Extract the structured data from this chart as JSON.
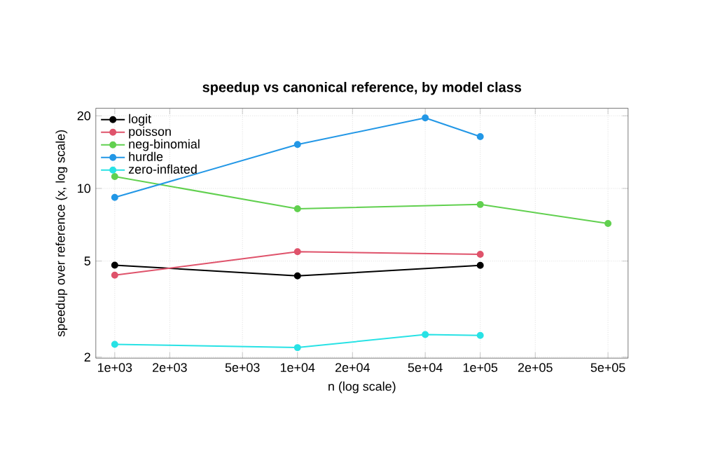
{
  "chart_data": {
    "type": "line",
    "title": "speedup vs canonical reference, by model class",
    "xlabel": "n (log scale)",
    "ylabel": "speedup over reference (x, log scale)",
    "log": "xy",
    "grid": true,
    "legend": "top left",
    "marker": "circle",
    "line_style": "solid",
    "xlim": [
      788,
      644000
    ],
    "ylim": [
      1.98,
      21.5
    ],
    "xticks": [
      {
        "value": 1000,
        "label": "1e+03"
      },
      {
        "value": 2000,
        "label": "2e+03"
      },
      {
        "value": 5000,
        "label": "5e+03"
      },
      {
        "value": 10000,
        "label": "1e+04"
      },
      {
        "value": 20000,
        "label": "2e+04"
      },
      {
        "value": 50000,
        "label": "5e+04"
      },
      {
        "value": 100000,
        "label": "1e+05"
      },
      {
        "value": 200000,
        "label": "2e+05"
      },
      {
        "value": 500000,
        "label": "5e+05"
      }
    ],
    "yticks": [
      2,
      5,
      10,
      20
    ],
    "series": [
      {
        "name": "logit",
        "color": "#000000",
        "x": [
          1000,
          10000,
          100000
        ],
        "values": [
          4.81,
          4.34,
          4.8
        ]
      },
      {
        "name": "poisson",
        "color": "#df536b",
        "x": [
          1000,
          10000,
          100000
        ],
        "values": [
          4.37,
          5.47,
          5.33
        ]
      },
      {
        "name": "neg-binomial",
        "color": "#61d04f",
        "x": [
          1000,
          10000,
          100000,
          500000
        ],
        "values": [
          11.2,
          8.24,
          8.58,
          7.16
        ]
      },
      {
        "name": "hurdle",
        "color": "#2297e6",
        "x": [
          1000,
          10000,
          50000,
          100000
        ],
        "values": [
          9.18,
          15.2,
          19.6,
          16.4
        ]
      },
      {
        "name": "zero-inflated",
        "color": "#28e2e5",
        "x": [
          1000,
          10000,
          50000,
          100000
        ],
        "values": [
          2.26,
          2.19,
          2.48,
          2.46
        ]
      }
    ]
  }
}
